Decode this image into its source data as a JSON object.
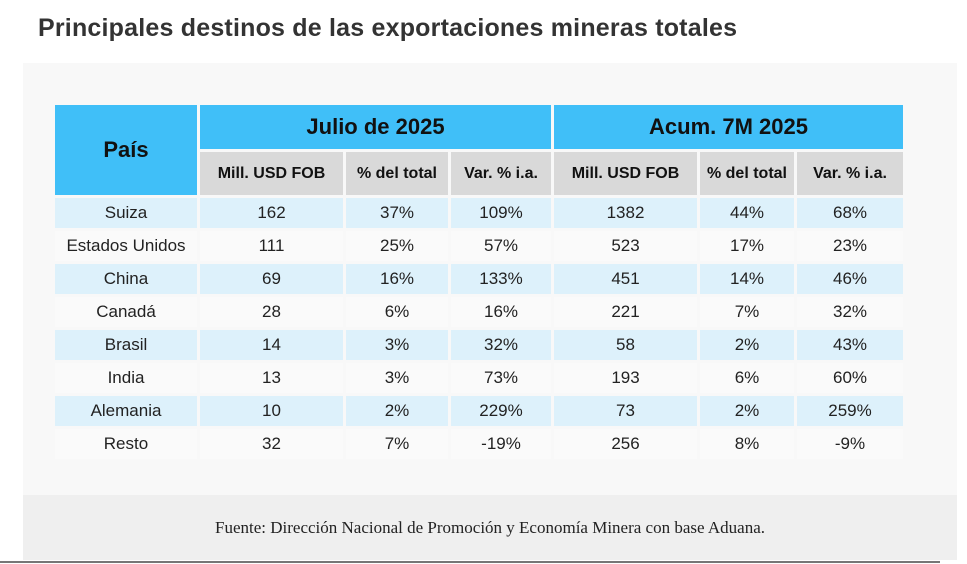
{
  "title": "Principales destinos de las exportaciones mineras totales",
  "table": {
    "country_header": "País",
    "groups": [
      "Julio de 2025",
      "Acum. 7M 2025"
    ],
    "subheaders": [
      "Mill. USD FOB",
      "% del total",
      "Var. % i.a.",
      "Mill. USD FOB",
      "% del total",
      "Var. % i.a."
    ],
    "rows": [
      [
        "Suiza",
        "162",
        "37%",
        "109%",
        "1382",
        "44%",
        "68%"
      ],
      [
        "Estados Unidos",
        "111",
        "25%",
        "57%",
        "523",
        "17%",
        "23%"
      ],
      [
        "China",
        "69",
        "16%",
        "133%",
        "451",
        "14%",
        "46%"
      ],
      [
        "Canadá",
        "28",
        "6%",
        "16%",
        "221",
        "7%",
        "32%"
      ],
      [
        "Brasil",
        "14",
        "3%",
        "32%",
        "58",
        "2%",
        "43%"
      ],
      [
        "India",
        "13",
        "3%",
        "73%",
        "193",
        "6%",
        "60%"
      ],
      [
        "Alemania",
        "10",
        "2%",
        "229%",
        "73",
        "2%",
        "259%"
      ],
      [
        "Resto",
        "32",
        "7%",
        "-19%",
        "256",
        "8%",
        "-9%"
      ]
    ]
  },
  "footer": "Fuente: Dirección Nacional de Promoción y Economía Minera con base Aduana.",
  "colors": {
    "header": "#40bff8",
    "subheader": "#d9d9d9",
    "row_alt": "#ddf1fb"
  }
}
